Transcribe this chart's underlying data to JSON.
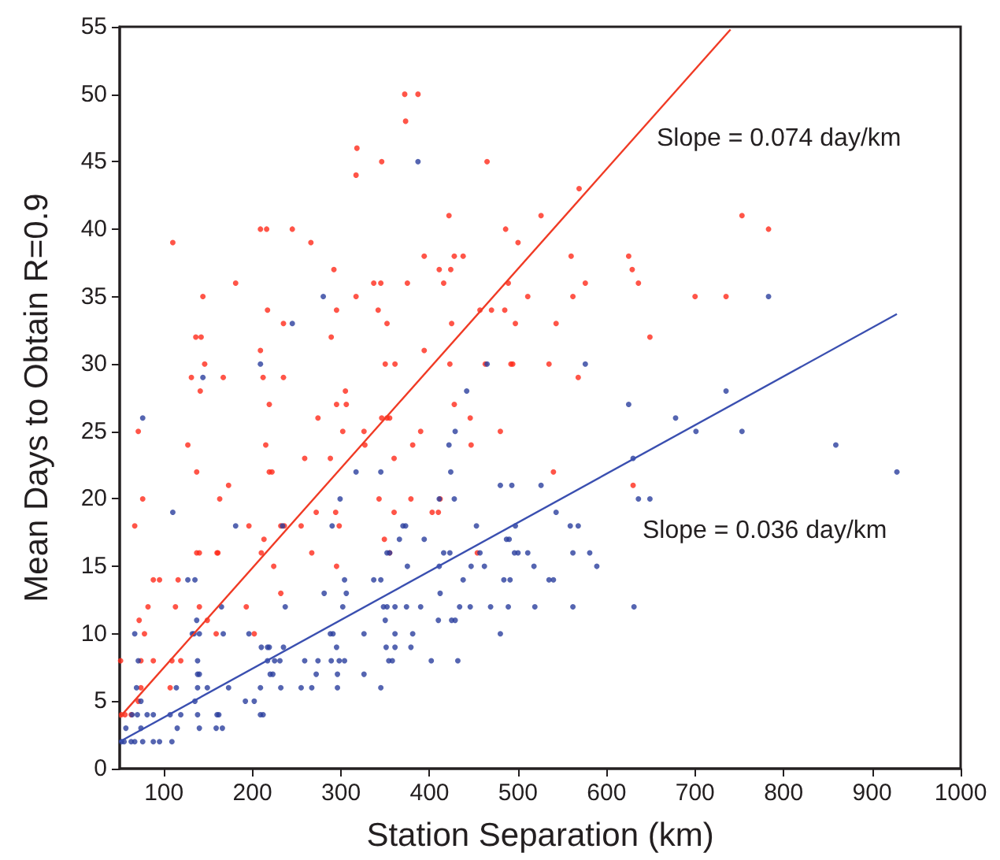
{
  "chart_data": {
    "type": "scatter",
    "xlabel": "Station Separation (km)",
    "ylabel": "Mean Days to Obtain R=0.9",
    "xlim": [
      50,
      1000
    ],
    "ylim": [
      0,
      55
    ],
    "xticks": [
      100,
      200,
      300,
      400,
      500,
      600,
      700,
      800,
      900,
      1000
    ],
    "yticks": [
      0,
      5,
      10,
      15,
      20,
      25,
      30,
      35,
      40,
      45,
      50,
      55
    ],
    "grid": false,
    "marker": "circle",
    "series": [
      {
        "color": "#ff2a1a",
        "x": [
          110,
          318,
          317,
          346,
          209,
          216,
          245,
          266,
          181,
          292,
          337,
          345,
          144,
          317,
          217,
          295,
          342,
          136,
          142,
          235,
          289,
          352,
          209,
          146,
          350,
          361,
          131,
          167,
          212,
          235,
          141,
          305,
          219,
          295,
          306,
          372,
          387,
          373,
          465,
          569,
          422,
          526,
          486,
          500,
          394,
          428,
          438,
          560,
          625,
          411,
          424,
          629,
          375,
          416,
          489,
          576,
          636,
          511,
          562,
          700,
          457,
          470,
          485,
          425,
          497,
          543,
          394,
          649,
          423,
          463,
          492,
          494,
          535,
          568,
          428,
          753,
          783,
          735,
          71,
          76,
          67,
          72,
          78,
          74,
          74,
          71,
          52,
          56,
          63,
          51,
          82,
          88,
          95,
          88,
          113,
          116,
          109,
          107,
          119,
          127,
          137,
          137,
          140,
          140,
          149,
          160,
          161,
          163,
          173,
          159,
          193,
          196,
          202,
          210,
          213,
          215,
          219,
          222,
          224,
          232,
          232,
          236,
          255,
          259,
          272,
          267,
          274,
          288,
          294,
          295,
          298,
          302,
          326,
          327,
          343,
          346,
          352,
          355,
          349,
          355,
          360,
          360,
          446,
          390,
          381,
          447,
          480,
          540,
          412,
          379,
          403,
          410,
          630,
          454
        ],
        "values": [
          39,
          46,
          44,
          45,
          40,
          40,
          40,
          39,
          36,
          37,
          36,
          36,
          35,
          35,
          34,
          34,
          34,
          32,
          32,
          33,
          32,
          33,
          31,
          30,
          30,
          30,
          29,
          29,
          29,
          29,
          28,
          28,
          27,
          27,
          27,
          50,
          50,
          48,
          45,
          43,
          41,
          41,
          40,
          39,
          38,
          38,
          38,
          38,
          38,
          37,
          37,
          37,
          36,
          36,
          36,
          36,
          36,
          35,
          35,
          35,
          34,
          34,
          34,
          33,
          33,
          33,
          31,
          32,
          30,
          30,
          30,
          30,
          30,
          29,
          27,
          41,
          40,
          35,
          25,
          20,
          18,
          11,
          10,
          8,
          6,
          5,
          4,
          4,
          4,
          8,
          12,
          14,
          14,
          8,
          12,
          14,
          8,
          6,
          8,
          24,
          22,
          16,
          16,
          12,
          11,
          16,
          16,
          20,
          21,
          10,
          12,
          18,
          10,
          16,
          17,
          24,
          22,
          22,
          15,
          13,
          18,
          18,
          18,
          23,
          19,
          16,
          26,
          23,
          19,
          15,
          18,
          25,
          25,
          24,
          20,
          26,
          26,
          26,
          17,
          16,
          23,
          19,
          26,
          25,
          24,
          24,
          25,
          22,
          20,
          20,
          19,
          19,
          21,
          16
        ]
      },
      {
        "color": "#2b3f9e",
        "x": [
          280,
          245,
          209,
          144,
          387,
          465,
          576,
          442,
          625,
          783,
          735,
          76,
          110,
          67,
          71,
          69,
          74,
          64,
          70,
          57,
          52,
          55,
          63,
          67,
          76,
          74,
          81,
          88,
          88,
          95,
          109,
          107,
          114,
          115,
          119,
          127,
          135,
          137,
          132,
          134,
          140,
          138,
          138,
          138,
          135,
          138,
          140,
          140,
          149,
          160,
          162,
          159,
          166,
          165,
          167,
          173,
          181,
          192,
          202,
          196,
          209,
          209,
          212,
          210,
          217,
          219,
          217,
          220,
          223,
          225,
          231,
          232,
          234,
          235,
          237,
          255,
          259,
          267,
          272,
          274,
          281,
          288,
          291,
          289,
          296,
          296,
          295,
          298,
          304,
          290,
          299,
          302,
          304,
          306,
          317,
          326,
          326,
          337,
          345,
          345,
          345,
          348,
          352,
          350,
          351,
          354,
          358,
          352,
          355,
          361,
          361,
          366,
          370,
          361,
          678,
          429,
          422,
          424,
          480,
          493,
          526,
          411,
          428,
          630,
          636,
          649,
          701,
          373,
          453,
          543,
          559,
          568,
          497,
          394,
          487,
          490,
          416,
          423,
          457,
          496,
          500,
          511,
          562,
          581,
          375,
          411,
          447,
          462,
          518,
          589,
          438,
          484,
          491,
          535,
          540,
          412,
          374,
          390,
          434,
          446,
          469,
          489,
          519,
          562,
          631,
          410,
          425,
          429,
          381,
          480,
          379,
          402,
          432,
          753,
          859,
          928
        ],
        "values": [
          35,
          33,
          30,
          29,
          45,
          30,
          30,
          28,
          27,
          35,
          28,
          26,
          19,
          10,
          8,
          6,
          5,
          4,
          4,
          3,
          2,
          2,
          2,
          2,
          2,
          3,
          4,
          4,
          2,
          2,
          2,
          4,
          6,
          3,
          4,
          14,
          14,
          11,
          10,
          10,
          10,
          8,
          7,
          6,
          5,
          4,
          3,
          7,
          6,
          4,
          4,
          3,
          3,
          12,
          10,
          6,
          18,
          5,
          5,
          10,
          6,
          4,
          4,
          9,
          9,
          9,
          8,
          7,
          7,
          8,
          8,
          6,
          18,
          9,
          12,
          6,
          8,
          6,
          7,
          8,
          13,
          10,
          10,
          8,
          7,
          6,
          9,
          8,
          8,
          18,
          20,
          12,
          14,
          13,
          22,
          10,
          7,
          14,
          14,
          22,
          6,
          12,
          12,
          11,
          9,
          8,
          8,
          16,
          16,
          10,
          9,
          17,
          18,
          12,
          26,
          25,
          24,
          22,
          21,
          21,
          21,
          20,
          20,
          23,
          20,
          20,
          25,
          18,
          18,
          19,
          18,
          18,
          18,
          17,
          17,
          17,
          16,
          16,
          16,
          16,
          16,
          16,
          16,
          16,
          15,
          15,
          15,
          15,
          15,
          15,
          14,
          14,
          14,
          14,
          14,
          13,
          12,
          12,
          12,
          12,
          12,
          12,
          12,
          12,
          12,
          11,
          11,
          11,
          10,
          10,
          9,
          8,
          8,
          25,
          24,
          22
        ]
      },
      {
        "type": "line",
        "marker": "none",
        "color": "#f03a24",
        "x": [
          50,
          740
        ],
        "values": [
          3.8,
          54.8
        ]
      },
      {
        "type": "line",
        "marker": "none",
        "color": "#3a4fb0",
        "x": [
          50,
          928
        ],
        "values": [
          2,
          33.7
        ]
      }
    ],
    "annotations": [
      "Slope = 0.074 day/km",
      "Slope = 0.036 day/km"
    ]
  }
}
